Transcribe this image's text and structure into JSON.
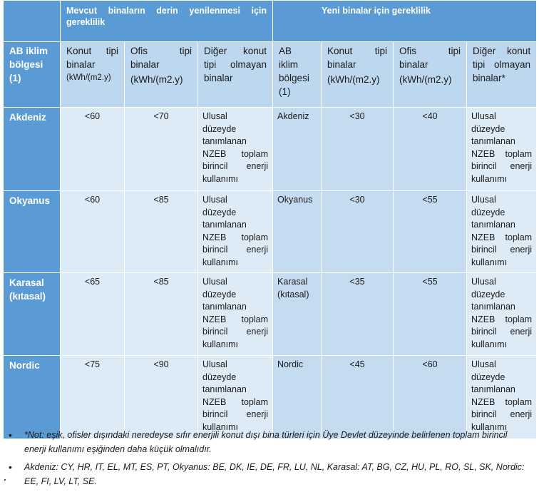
{
  "header": {
    "existing": "Mevcut binaların derin yenilenmesi için gereklilik",
    "new": "Yeni binalar için gereklilik"
  },
  "subheader": {
    "zone": [
      "AB iklim",
      "bölgesi",
      "(1)"
    ],
    "residential": [
      "Konut tipi",
      "binalar"
    ],
    "residential_unit": "(kWh/(m2.y)",
    "office": [
      "Ofis tipi",
      "binalar"
    ],
    "office_unit": "(kWh/(m2.y)",
    "other": [
      "Diğer konut",
      "tipi olmayan",
      "binalar"
    ],
    "zone_new": [
      "AB",
      "iklim",
      "bölgesi",
      "(1)"
    ],
    "residential_new": [
      "Konut tipi",
      "binalar"
    ],
    "residential_new_unit": "(kWh/(m2.y)",
    "office_new": [
      "Ofis tipi",
      "binalar"
    ],
    "office_new_unit": "(kWh/(m2.y)",
    "other_new": [
      "Diğer konut",
      "tipi olmayan",
      "binalar*"
    ]
  },
  "nzeb_lines": [
    "Ulusal",
    "düzeyde",
    "tanımlanan",
    "NZEB toplam",
    "birincil enerji",
    "kullanımı"
  ],
  "rows": [
    {
      "zone": [
        "Akdeniz"
      ],
      "res": "<60",
      "office": "<70",
      "zone_new": [
        "Akdeniz"
      ],
      "res_new": "<30",
      "office_new": "<40"
    },
    {
      "zone": [
        "Okyanus"
      ],
      "res": "<60",
      "office": "<85",
      "zone_new": [
        "Okyanus"
      ],
      "res_new": "<30",
      "office_new": "<55"
    },
    {
      "zone": [
        "Karasal",
        "(kıtasal)"
      ],
      "res": "<65",
      "office": "<85",
      "zone_new": [
        "Karasal",
        "(kıtasal)"
      ],
      "res_new": "<35",
      "office_new": "<55"
    },
    {
      "zone": [
        "Nordic"
      ],
      "res": "<75",
      "office": "<90",
      "zone_new": [
        "Nordic"
      ],
      "res_new": "<45",
      "office_new": "<60"
    }
  ],
  "notes": [
    "*Not: eşik, ofisler dışındaki neredeyse sıfır enerjili konut dışı bina türleri için Üye Devlet düzeyinde belirlenen toplam birincil enerji kullanımı eşiğinden daha küçük olmalıdır.",
    "Akdeniz: CY, HR, IT, EL, MT, ES, PT, Okyanus: BE, DK, IE, DE, FR, LU, NL, Karasal: AT, BG, CZ, HU, PL, RO, SL, SK, Nordic: EE, FI, LV, LT, SE."
  ],
  "colors": {
    "header_blue": "#5b9bd5",
    "light_blue": "#ddebf7",
    "mid_blue": "#c5dbf0",
    "subheader_blue": "#bdd7ee"
  }
}
